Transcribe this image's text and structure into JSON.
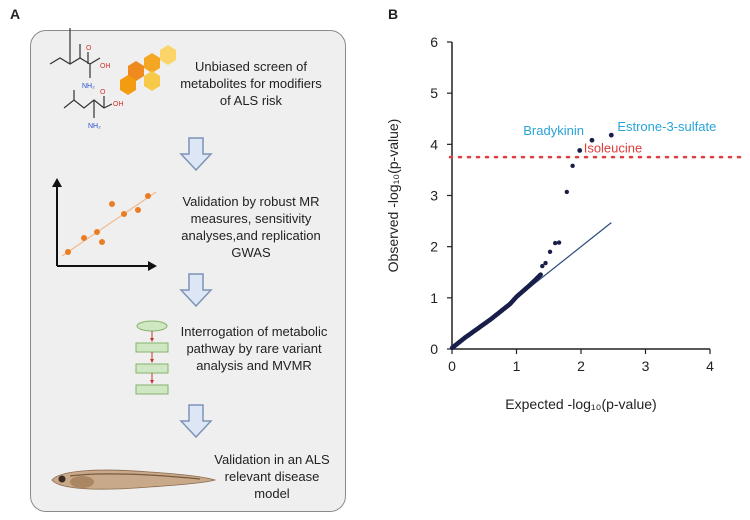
{
  "panel_a": {
    "letter": "A",
    "steps": [
      "Unbiased screen of metabolites for modifiers of ALS risk",
      "Validation by robust MR measures, sensitivity analyses,and replication GWAS",
      "Interrogation of metabolic pathway by rare variant analysis and MVMR",
      "Validation in an ALS relevant disease model"
    ],
    "molecule_labels": {
      "oh_top": "O",
      "oh_top_group": "OH",
      "nh2_top": "NH₂",
      "oh_bottom": "O",
      "oh_bottom_group": "OH",
      "nh2_bottom": "NH₂"
    },
    "colors": {
      "arrow_fill": "#dce6f4",
      "arrow_stroke": "#7f93b8",
      "dot": "#ea7d24",
      "hex": [
        "#ee8a1e",
        "#f5a623",
        "#f7c948",
        "#fbd56a"
      ],
      "pathway_box": "#cfe8c3",
      "pathway_stroke": "#86b26f",
      "pathway_arrow": "#c0392b"
    }
  },
  "panel_b": {
    "letter": "B",
    "chart_data": {
      "type": "scatter",
      "xlabel": "Expected -log₁₀(p-value)",
      "ylabel": "Observed -log₁₀(p-value)",
      "xlim": [
        0,
        4
      ],
      "ylim": [
        0,
        6
      ],
      "xticks": [
        "0",
        "1",
        "2",
        "3",
        "4"
      ],
      "yticks": [
        "0",
        "1",
        "2",
        "3",
        "4",
        "5",
        "6"
      ],
      "threshold": 3.75,
      "threshold_color": "#e03c3c",
      "diagonal": [
        [
          0,
          0
        ],
        [
          2.47,
          2.47
        ]
      ],
      "diagonal_color": "#2b4a7a",
      "point_color": "#1a1f4a",
      "labeled_points": [
        {
          "label": "Estrone-3-sulfate",
          "x": 2.47,
          "y": 4.18,
          "color": "#2aa3d6"
        },
        {
          "label": "Bradykinin",
          "x": 2.17,
          "y": 4.08,
          "color": "#2aa3d6"
        },
        {
          "label": "Isoleucine",
          "x": 1.98,
          "y": 3.88,
          "color": "#e03c3c"
        }
      ],
      "outliers": [
        {
          "x": 1.87,
          "y": 3.58
        },
        {
          "x": 1.78,
          "y": 3.07
        },
        {
          "x": 1.66,
          "y": 2.08
        },
        {
          "x": 1.6,
          "y": 2.07
        },
        {
          "x": 1.52,
          "y": 1.9
        },
        {
          "x": 1.45,
          "y": 1.68
        },
        {
          "x": 1.4,
          "y": 1.62
        }
      ],
      "curve": [
        [
          0.0,
          0.02
        ],
        [
          0.1,
          0.12
        ],
        [
          0.2,
          0.22
        ],
        [
          0.3,
          0.31
        ],
        [
          0.4,
          0.4
        ],
        [
          0.5,
          0.49
        ],
        [
          0.6,
          0.58
        ],
        [
          0.7,
          0.68
        ],
        [
          0.8,
          0.78
        ],
        [
          0.9,
          0.88
        ],
        [
          1.0,
          1.02
        ],
        [
          1.1,
          1.13
        ],
        [
          1.2,
          1.24
        ],
        [
          1.3,
          1.36
        ],
        [
          1.38,
          1.46
        ]
      ]
    }
  }
}
